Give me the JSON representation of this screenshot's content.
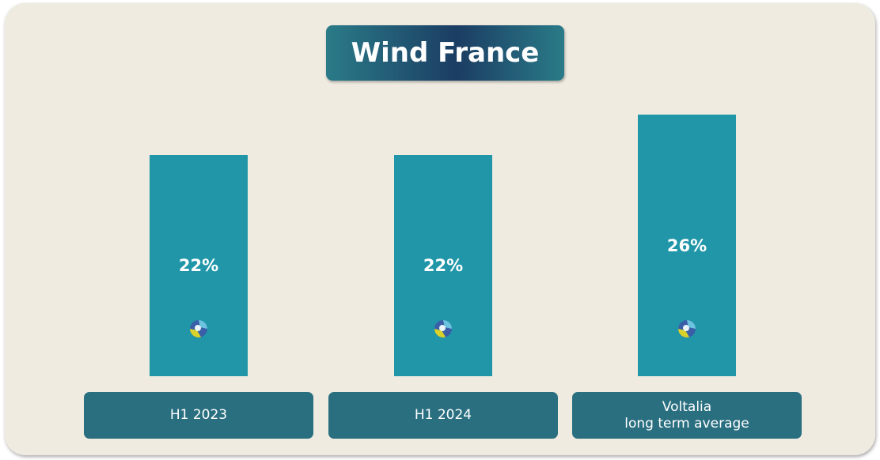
{
  "chart_data": {
    "type": "bar",
    "title": "Wind France",
    "categories": [
      "H1 2023",
      "H1 2024",
      "Voltalia\nlong term average"
    ],
    "values": [
      22,
      22,
      26
    ],
    "value_labels": [
      "22%",
      "22%",
      "26%"
    ],
    "color": "#2096a8",
    "ylim": [
      0,
      26
    ]
  }
}
